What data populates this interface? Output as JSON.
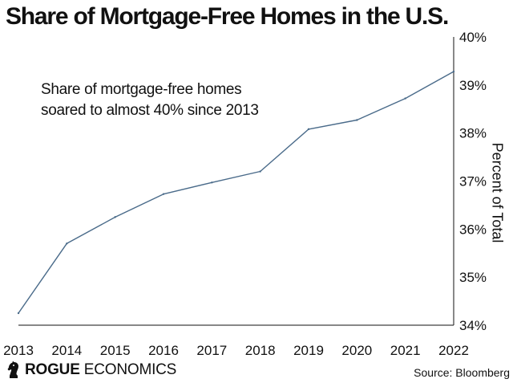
{
  "title": "Share of Mortgage-Free Homes in the U.S.",
  "annotation": "Share of mortgage-free homes soared to almost 40% since 2013",
  "source": "Source: Bloomberg",
  "logo": {
    "bold": "ROGUE",
    "regular": "ECONOMICS",
    "icon": "knight-chess-icon"
  },
  "colors": {
    "line": "#4a6b8a",
    "axis": "#111111"
  },
  "chart_data": {
    "type": "line",
    "title": "Share of Mortgage-Free Homes in the U.S.",
    "xlabel": "",
    "ylabel": "Percent of Total",
    "y_axis_position": "right",
    "x": [
      "2013",
      "2014",
      "2015",
      "2016",
      "2017",
      "2018",
      "2019",
      "2020",
      "2021",
      "2022"
    ],
    "series": [
      {
        "values": [
          34.25,
          35.7,
          36.25,
          36.73,
          36.97,
          37.2,
          38.08,
          38.27,
          38.72,
          39.28
        ]
      }
    ],
    "ylim": [
      34,
      40
    ],
    "yticks": [
      34,
      35,
      36,
      37,
      38,
      39,
      40
    ],
    "ytick_labels": [
      "34%",
      "35%",
      "36%",
      "37%",
      "38%",
      "39%",
      "40%"
    ],
    "grid": false,
    "legend": "none"
  }
}
